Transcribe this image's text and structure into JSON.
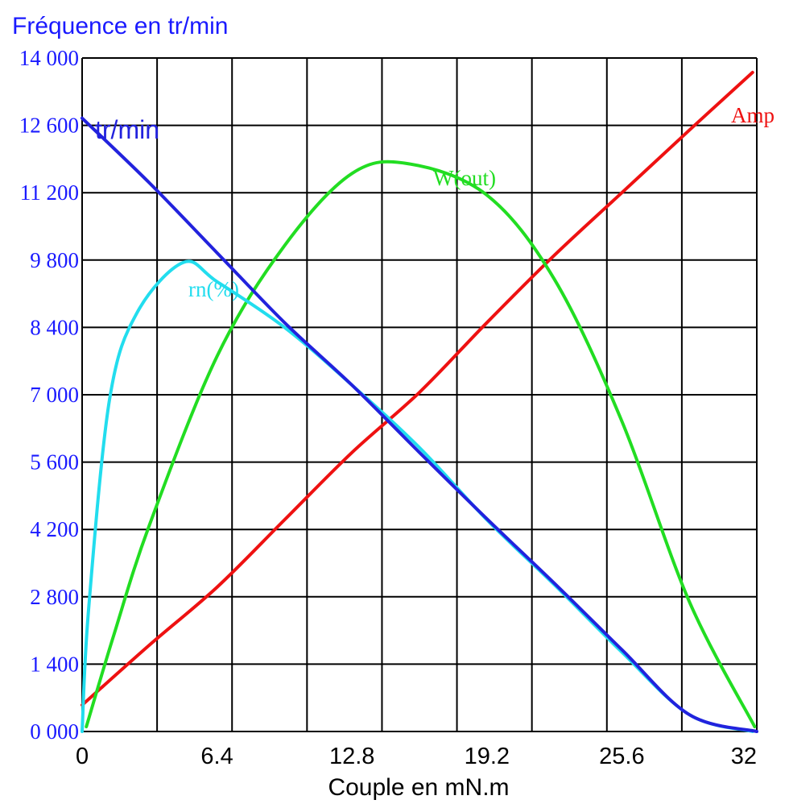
{
  "chart_data": {
    "type": "line",
    "title": "Fréquence en tr/min",
    "xlabel": "Couple en mN.m",
    "ylabel": "",
    "xlim": [
      0,
      32
    ],
    "ylim": [
      0,
      14000
    ],
    "x_ticks": [
      "0",
      "6.4",
      "12.8",
      "19.2",
      "25.6",
      "32"
    ],
    "y_ticks": [
      "0 000",
      "1 400",
      "2 800",
      "4 200",
      "5 600",
      "7 000",
      "8 400",
      "9 800",
      "11 200",
      "12 600",
      "14 000"
    ],
    "grid": true,
    "colors": {
      "speed": "#2222dd",
      "current": "#ee1111",
      "power": "#22dd22",
      "efficiency": "#22ddee",
      "grid": "#000000",
      "tick_text": "#1a1aff"
    },
    "series": [
      {
        "name": "tr/min",
        "key": "speed",
        "x": [
          0,
          3.2,
          6.4,
          9.6,
          12.8,
          16,
          19.2,
          22.4,
          25.6,
          28.8,
          32
        ],
        "y": [
          12750,
          11400,
          9950,
          8500,
          7200,
          5800,
          4420,
          3080,
          1700,
          350,
          0
        ]
      },
      {
        "name": "Amp",
        "key": "current",
        "x": [
          0,
          3.2,
          6.4,
          9.6,
          12.8,
          16,
          19.2,
          22.4,
          25.6,
          28.8,
          31.8
        ],
        "y": [
          550,
          1800,
          3000,
          4400,
          5800,
          7050,
          8500,
          9900,
          11200,
          12500,
          13700
        ]
      },
      {
        "name": "W(out)",
        "key": "power",
        "x": [
          0.2,
          1.5,
          3.2,
          6.4,
          9.6,
          12.8,
          15.5,
          19.2,
          22.4,
          25.6,
          28.8,
          31.9
        ],
        "y": [
          100,
          2000,
          4300,
          7800,
          10100,
          11600,
          11800,
          11150,
          9400,
          6450,
          2700,
          100
        ]
      },
      {
        "name": "rn(%)",
        "key": "efficiency",
        "x": [
          0,
          0.3,
          1.3,
          2.6,
          4.8,
          6.4,
          9.6,
          12.8,
          16,
          19.2,
          22.4,
          25.6,
          28.8,
          31.8
        ],
        "y": [
          0,
          2500,
          6900,
          8700,
          9750,
          9350,
          8400,
          7200,
          5900,
          4400,
          3050,
          1650,
          350,
          0
        ]
      }
    ]
  }
}
